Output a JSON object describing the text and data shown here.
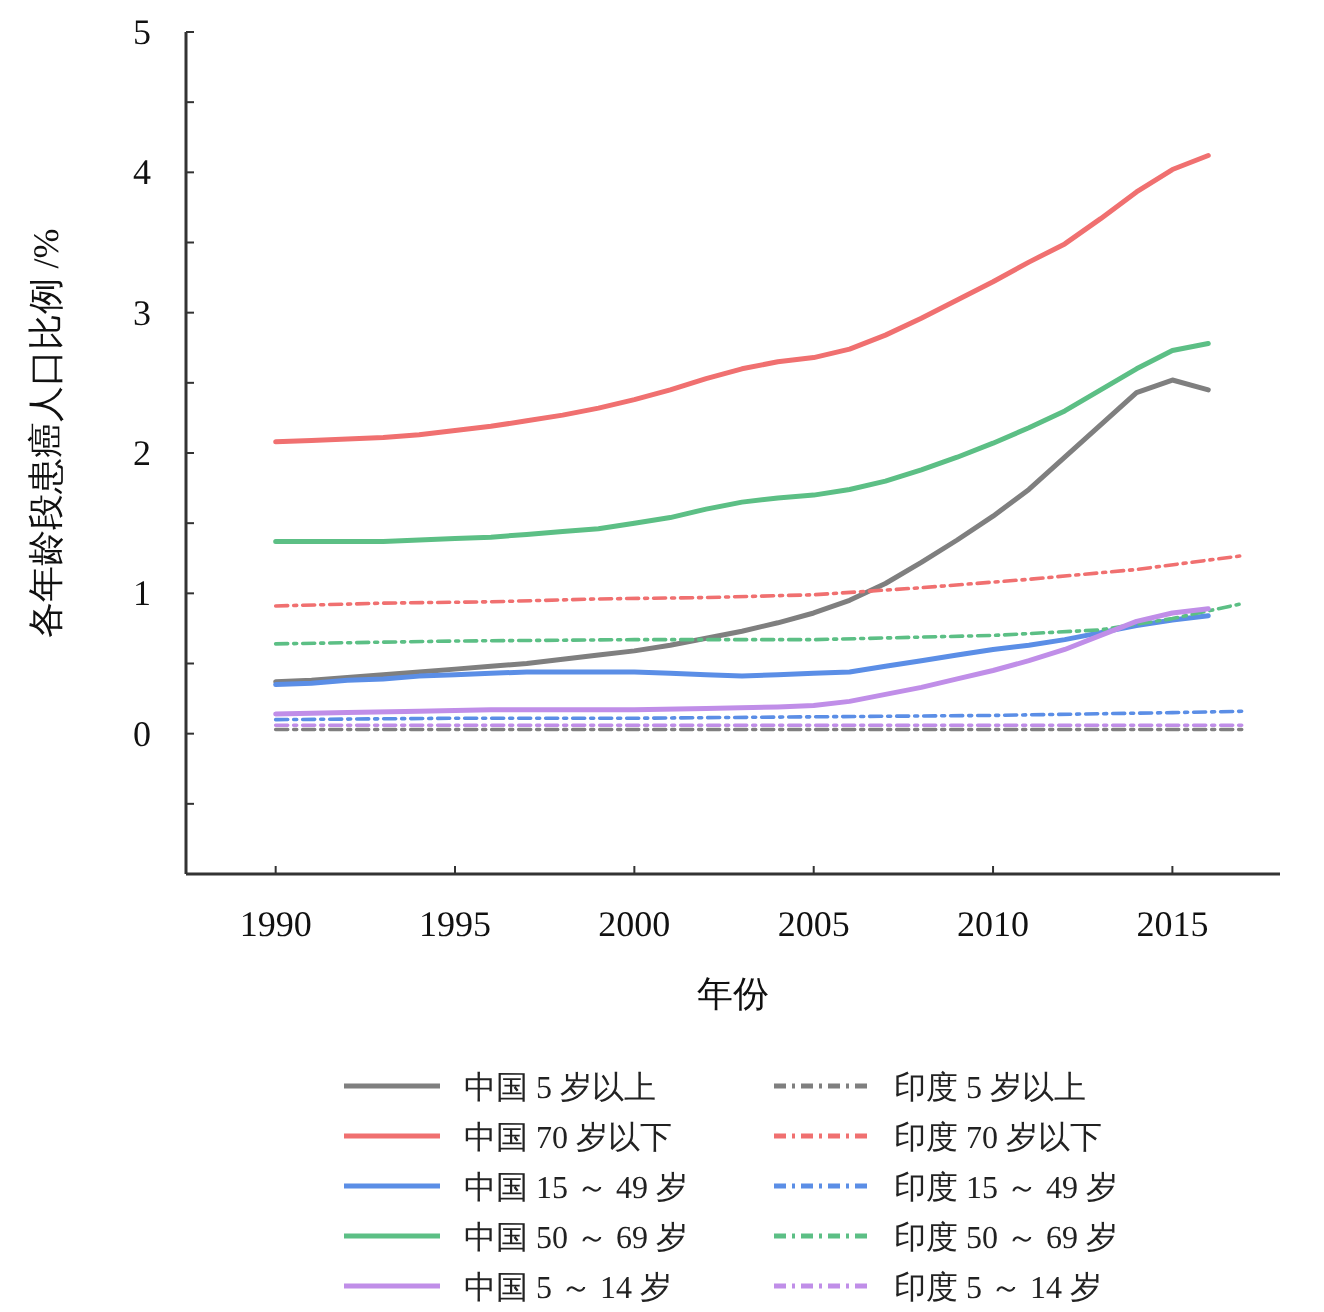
{
  "chart_data": {
    "type": "line",
    "xlabel": "年份",
    "ylabel": "各年龄段患癌人口比例 /%",
    "xlim": [
      1987.5,
      2018
    ],
    "ylim": [
      -1,
      5
    ],
    "xticks": [
      1990,
      1995,
      2000,
      2005,
      2010,
      2015
    ],
    "yticks": [
      {
        "value": -0.5,
        "label": null
      },
      0,
      {
        "value": 0.5,
        "label": null
      },
      1,
      {
        "value": 1.5,
        "label": null
      },
      2,
      {
        "value": 2.5,
        "label": null
      },
      3,
      {
        "value": 3.5,
        "label": null
      },
      4,
      {
        "value": 4.5,
        "label": null
      },
      5
    ],
    "legend": "bottom",
    "grid": false,
    "marker": "none",
    "series": [
      {
        "name": "中国 5 岁以上",
        "color": "#7f7f7f",
        "line_style": "solid",
        "x": [
          1990,
          1991,
          1992,
          1993,
          1994,
          1995,
          1996,
          1997,
          1998,
          1999,
          2000,
          2001,
          2002,
          2003,
          2004,
          2005,
          2006,
          2007,
          2008,
          2009,
          2010,
          2011,
          2012,
          2013,
          2014,
          2015,
          2016
        ],
        "values": [
          0.37,
          0.38,
          0.4,
          0.42,
          0.44,
          0.46,
          0.48,
          0.5,
          0.53,
          0.56,
          0.59,
          0.63,
          0.68,
          0.73,
          0.79,
          0.86,
          0.95,
          1.07,
          1.22,
          1.38,
          1.55,
          1.74,
          1.97,
          2.2,
          2.43,
          2.52,
          2.45
        ]
      },
      {
        "name": "印度 5 岁以上",
        "color": "#7f7f7f",
        "line_style": "dashed",
        "x": [
          1990,
          1995,
          2000,
          2005,
          2010,
          2015,
          2017
        ],
        "values": [
          0.03,
          0.03,
          0.03,
          0.03,
          0.03,
          0.03,
          0.03
        ]
      },
      {
        "name": "中国 70 岁以下",
        "color": "#f07070",
        "line_style": "solid",
        "x": [
          1990,
          1991,
          1992,
          1993,
          1994,
          1995,
          1996,
          1997,
          1998,
          1999,
          2000,
          2001,
          2002,
          2003,
          2004,
          2005,
          2006,
          2007,
          2008,
          2009,
          2010,
          2011,
          2012,
          2013,
          2014,
          2015,
          2016
        ],
        "values": [
          2.08,
          2.09,
          2.1,
          2.11,
          2.13,
          2.16,
          2.19,
          2.23,
          2.27,
          2.32,
          2.38,
          2.45,
          2.53,
          2.6,
          2.65,
          2.68,
          2.74,
          2.84,
          2.96,
          3.09,
          3.22,
          3.36,
          3.49,
          3.67,
          3.86,
          4.02,
          4.12
        ]
      },
      {
        "name": "印度 70 岁以下",
        "color": "#f07070",
        "line_style": "dashed",
        "x": [
          1990,
          1993,
          1996,
          1999,
          2002,
          2005,
          2008,
          2011,
          2014,
          2017
        ],
        "values": [
          0.91,
          0.93,
          0.94,
          0.96,
          0.97,
          0.99,
          1.04,
          1.1,
          1.17,
          1.27
        ]
      },
      {
        "name": "中国 15 ～ 49 岁",
        "color": "#5b8ee6",
        "line_style": "solid",
        "x": [
          1990,
          1991,
          1992,
          1993,
          1994,
          1995,
          1996,
          1997,
          1998,
          1999,
          2000,
          2001,
          2002,
          2003,
          2004,
          2005,
          2006,
          2007,
          2008,
          2009,
          2010,
          2011,
          2012,
          2013,
          2014,
          2015,
          2016
        ],
        "values": [
          0.35,
          0.36,
          0.38,
          0.39,
          0.41,
          0.42,
          0.43,
          0.44,
          0.44,
          0.44,
          0.44,
          0.43,
          0.42,
          0.41,
          0.42,
          0.43,
          0.44,
          0.48,
          0.52,
          0.56,
          0.6,
          0.63,
          0.67,
          0.72,
          0.77,
          0.81,
          0.84
        ]
      },
      {
        "name": "印度 15 ～ 49 岁",
        "color": "#5b8ee6",
        "line_style": "dashed",
        "x": [
          1990,
          1995,
          2000,
          2005,
          2010,
          2015,
          2017
        ],
        "values": [
          0.1,
          0.11,
          0.11,
          0.12,
          0.13,
          0.15,
          0.16
        ]
      },
      {
        "name": "中国 50 ～ 69 岁",
        "color": "#5cbf85",
        "line_style": "solid",
        "x": [
          1990,
          1991,
          1992,
          1993,
          1994,
          1995,
          1996,
          1997,
          1998,
          1999,
          2000,
          2001,
          2002,
          2003,
          2004,
          2005,
          2006,
          2007,
          2008,
          2009,
          2010,
          2011,
          2012,
          2013,
          2014,
          2015,
          2016
        ],
        "values": [
          1.37,
          1.37,
          1.37,
          1.37,
          1.38,
          1.39,
          1.4,
          1.42,
          1.44,
          1.46,
          1.5,
          1.54,
          1.6,
          1.65,
          1.68,
          1.7,
          1.74,
          1.8,
          1.88,
          1.97,
          2.07,
          2.18,
          2.3,
          2.45,
          2.6,
          2.73,
          2.78
        ]
      },
      {
        "name": "印度 50 ～ 69 岁",
        "color": "#5cbf85",
        "line_style": "dashed",
        "x": [
          1990,
          1995,
          2000,
          2005,
          2010,
          2013,
          2015,
          2017
        ],
        "values": [
          0.64,
          0.66,
          0.67,
          0.67,
          0.7,
          0.74,
          0.82,
          0.93
        ]
      },
      {
        "name": "中国 5 ～ 14 岁",
        "color": "#c08ee8",
        "line_style": "solid",
        "x": [
          1990,
          1992,
          1994,
          1996,
          1998,
          2000,
          2002,
          2004,
          2005,
          2006,
          2007,
          2008,
          2009,
          2010,
          2011,
          2012,
          2013,
          2014,
          2015,
          2016
        ],
        "values": [
          0.14,
          0.15,
          0.16,
          0.17,
          0.17,
          0.17,
          0.18,
          0.19,
          0.2,
          0.23,
          0.28,
          0.33,
          0.39,
          0.45,
          0.52,
          0.6,
          0.7,
          0.8,
          0.86,
          0.89
        ]
      },
      {
        "name": "印度 5 ～ 14 岁",
        "color": "#c08ee8",
        "line_style": "dashed",
        "x": [
          1990,
          1995,
          2000,
          2005,
          2010,
          2015,
          2017
        ],
        "values": [
          0.06,
          0.06,
          0.06,
          0.06,
          0.06,
          0.06,
          0.06
        ]
      }
    ]
  }
}
